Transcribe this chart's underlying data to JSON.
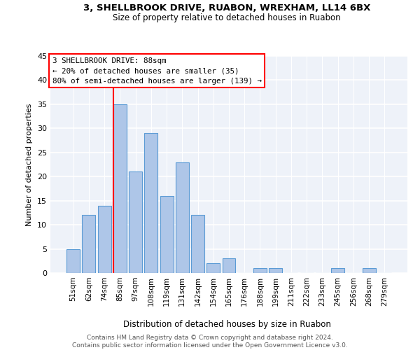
{
  "title_line1": "3, SHELLBROOK DRIVE, RUABON, WREXHAM, LL14 6BX",
  "title_line2": "Size of property relative to detached houses in Ruabon",
  "xlabel": "Distribution of detached houses by size in Ruabon",
  "ylabel": "Number of detached properties",
  "bar_labels": [
    "51sqm",
    "62sqm",
    "74sqm",
    "85sqm",
    "97sqm",
    "108sqm",
    "119sqm",
    "131sqm",
    "142sqm",
    "154sqm",
    "165sqm",
    "176sqm",
    "188sqm",
    "199sqm",
    "211sqm",
    "222sqm",
    "233sqm",
    "245sqm",
    "256sqm",
    "268sqm",
    "279sqm"
  ],
  "bar_values": [
    5,
    12,
    14,
    35,
    21,
    29,
    16,
    23,
    12,
    2,
    3,
    0,
    1,
    1,
    0,
    0,
    0,
    1,
    0,
    1,
    0
  ],
  "bar_color": "#aec6e8",
  "bar_edge_color": "#5b9bd5",
  "vline_color": "red",
  "vline_index": 3,
  "annotation_text": "3 SHELLBROOK DRIVE: 88sqm\n← 20% of detached houses are smaller (35)\n80% of semi-detached houses are larger (139) →",
  "annotation_box_color": "white",
  "annotation_box_edge_color": "red",
  "ylim": [
    0,
    45
  ],
  "yticks": [
    0,
    5,
    10,
    15,
    20,
    25,
    30,
    35,
    40,
    45
  ],
  "background_color": "#eef2f9",
  "grid_color": "white",
  "footer_line1": "Contains HM Land Registry data © Crown copyright and database right 2024.",
  "footer_line2": "Contains public sector information licensed under the Open Government Licence v3.0."
}
